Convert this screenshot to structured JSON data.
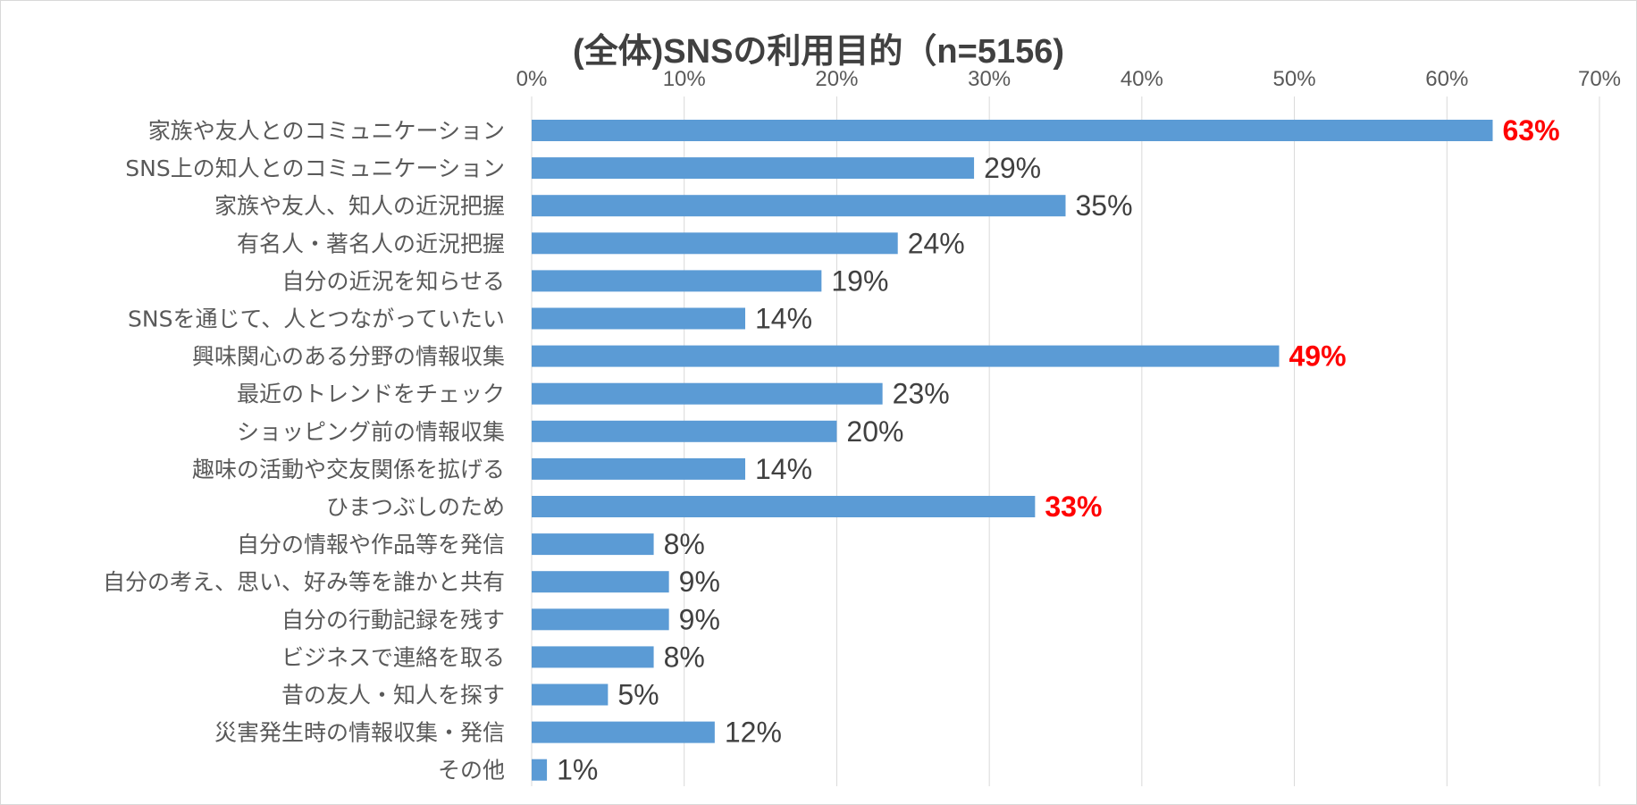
{
  "chart_data": {
    "type": "bar",
    "orientation": "horizontal",
    "title": "(全体)SNSの利用目的（n=5156)",
    "xlim": [
      0,
      70
    ],
    "x_ticks": [
      "0%",
      "10%",
      "20%",
      "30%",
      "40%",
      "50%",
      "60%",
      "70%"
    ],
    "x_axis_position": "top",
    "grid": true,
    "bar_color": "#5b9bd5",
    "highlight_color": "#ff0000",
    "categories": [
      "家族や友人とのコミュニケーション",
      "SNS上の知人とのコミュニケーション",
      "家族や友人、知人の近況把握",
      "有名人・著名人の近況把握",
      "自分の近況を知らせる",
      "SNSを通じて、人とつながっていたい",
      "興味関心のある分野の情報収集",
      "最近のトレンドをチェック",
      "ショッピング前の情報収集",
      "趣味の活動や交友関係を拡げる",
      "ひまつぶしのため",
      "自分の情報や作品等を発信",
      "自分の考え、思い、好み等を誰かと共有",
      "自分の行動記録を残す",
      "ビジネスで連絡を取る",
      "昔の友人・知人を探す",
      "災害発生時の情報収集・発信",
      "その他"
    ],
    "values": [
      63,
      29,
      35,
      24,
      19,
      14,
      49,
      23,
      20,
      14,
      33,
      8,
      9,
      9,
      8,
      5,
      12,
      1
    ],
    "data_labels": [
      "63%",
      "29%",
      "35%",
      "24%",
      "19%",
      "14%",
      "49%",
      "23%",
      "20%",
      "14%",
      "33%",
      "8%",
      "9%",
      "9%",
      "8%",
      "5%",
      "12%",
      "1%"
    ],
    "highlighted": [
      true,
      false,
      false,
      false,
      false,
      false,
      true,
      false,
      false,
      false,
      true,
      false,
      false,
      false,
      false,
      false,
      false,
      false
    ]
  }
}
